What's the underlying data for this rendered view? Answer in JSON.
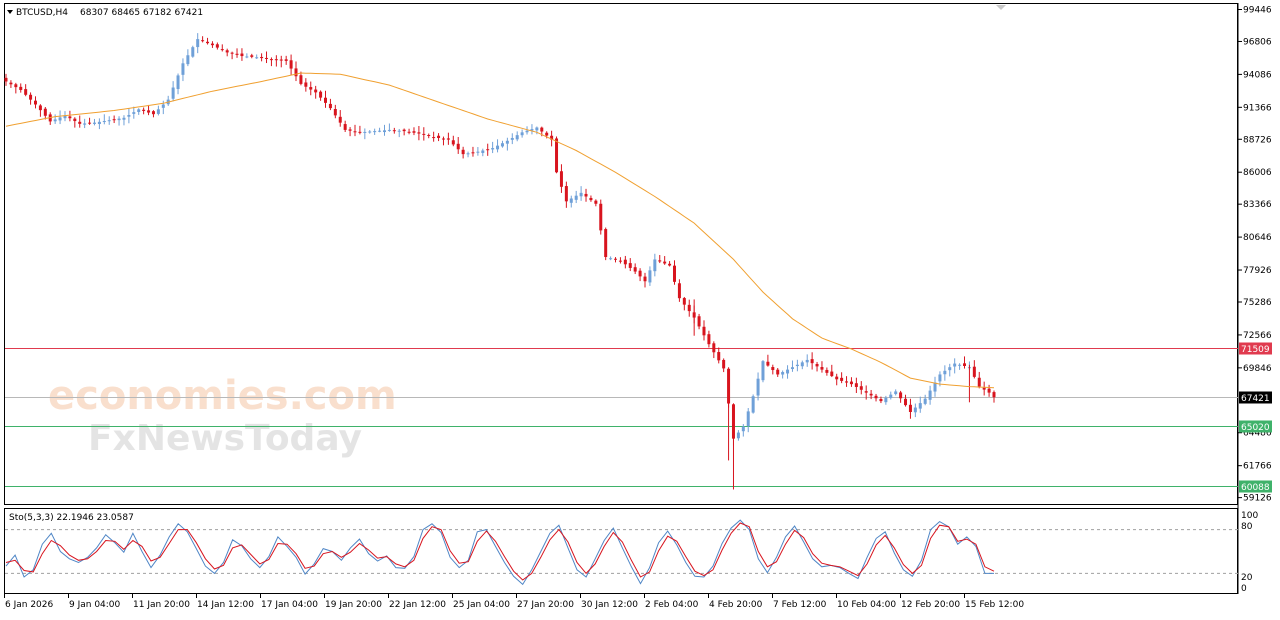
{
  "header": {
    "symbol_timeframe": "BTCUSD,H4",
    "ohlc_values": "68307 68465 67182 67421"
  },
  "watermark": {
    "line1": "economies.com",
    "line2": "FxNewsToday"
  },
  "indicator": {
    "title": "Sto(5,3,3) 22.1946 23.0587",
    "ticks": [
      "100",
      "80",
      "20",
      "0"
    ]
  },
  "colors": {
    "bull": "#6fa0d8",
    "bear": "#d8141e",
    "ma": "#f0a030",
    "resistance": "#e03a4e",
    "support": "#3fb26a",
    "current": "#000000",
    "stoch_main": "#4f86c6",
    "stoch_signal": "#d8141e"
  },
  "chart_data": [
    {
      "type": "candlestick",
      "title": "BTCUSD,H4",
      "ylim": [
        58600,
        99900
      ],
      "y_ticks": [
        "99446",
        "96806",
        "94086",
        "91366",
        "88726",
        "86006",
        "83366",
        "80646",
        "77926",
        "75286",
        "72566",
        "69846",
        "64486",
        "61766",
        "59126"
      ],
      "x_ticks": [
        "6 Jan 2026",
        "9 Jan 04:00",
        "11 Jan 20:00",
        "14 Jan 12:00",
        "17 Jan 04:00",
        "19 Jan 20:00",
        "22 Jan 12:00",
        "25 Jan 04:00",
        "27 Jan 20:00",
        "30 Jan 12:00",
        "2 Feb 04:00",
        "4 Feb 20:00",
        "7 Feb 12:00",
        "10 Feb 04:00",
        "12 Feb 20:00",
        "15 Feb 12:00"
      ],
      "close_path": [
        [
          0,
          93500
        ],
        [
          3,
          92800
        ],
        [
          6,
          91600
        ],
        [
          9,
          90200
        ],
        [
          12,
          90700
        ],
        [
          15,
          90000
        ],
        [
          18,
          90100
        ],
        [
          21,
          90300
        ],
        [
          24,
          90500
        ],
        [
          27,
          91200
        ],
        [
          30,
          90800
        ],
        [
          33,
          92000
        ],
        [
          36,
          95000
        ],
        [
          39,
          97000
        ],
        [
          42,
          96500
        ],
        [
          45,
          95900
        ],
        [
          48,
          95600
        ],
        [
          51,
          95500
        ],
        [
          54,
          95300
        ],
        [
          57,
          95200
        ],
        [
          60,
          93300
        ],
        [
          63,
          92600
        ],
        [
          66,
          91300
        ],
        [
          69,
          89500
        ],
        [
          72,
          89300
        ],
        [
          75,
          89400
        ],
        [
          78,
          89500
        ],
        [
          81,
          89400
        ],
        [
          84,
          89200
        ],
        [
          87,
          88900
        ],
        [
          90,
          88700
        ],
        [
          93,
          87500
        ],
        [
          96,
          87700
        ],
        [
          99,
          88000
        ],
        [
          102,
          88600
        ],
        [
          105,
          89300
        ],
        [
          108,
          89700
        ],
        [
          111,
          88700
        ],
        [
          112,
          86000
        ],
        [
          114,
          83600
        ],
        [
          117,
          84300
        ],
        [
          120,
          83400
        ],
        [
          122,
          79000
        ],
        [
          125,
          78700
        ],
        [
          128,
          77800
        ],
        [
          130,
          77000
        ],
        [
          132,
          78800
        ],
        [
          135,
          78300
        ],
        [
          137,
          75600
        ],
        [
          140,
          74000
        ],
        [
          143,
          71800
        ],
        [
          146,
          69800
        ],
        [
          148,
          64000
        ],
        [
          150,
          65000
        ],
        [
          152,
          67500
        ],
        [
          154,
          70400
        ],
        [
          157,
          69300
        ],
        [
          160,
          69900
        ],
        [
          163,
          70500
        ],
        [
          166,
          69700
        ],
        [
          169,
          68900
        ],
        [
          172,
          68500
        ],
        [
          175,
          67800
        ],
        [
          178,
          67100
        ],
        [
          181,
          67900
        ],
        [
          184,
          66200
        ],
        [
          187,
          67300
        ],
        [
          190,
          69300
        ],
        [
          193,
          70200
        ],
        [
          196,
          69900
        ],
        [
          198,
          68300
        ],
        [
          200,
          67800
        ],
        [
          201,
          67421
        ]
      ],
      "ma_path": [
        [
          0,
          89800
        ],
        [
          10,
          90600
        ],
        [
          22,
          91100
        ],
        [
          32,
          91700
        ],
        [
          42,
          92700
        ],
        [
          52,
          93500
        ],
        [
          60,
          94200
        ],
        [
          68,
          94100
        ],
        [
          78,
          93200
        ],
        [
          88,
          91800
        ],
        [
          98,
          90400
        ],
        [
          108,
          89300
        ],
        [
          116,
          87800
        ],
        [
          124,
          86000
        ],
        [
          132,
          84000
        ],
        [
          140,
          81800
        ],
        [
          148,
          78800
        ],
        [
          154,
          76100
        ],
        [
          160,
          73900
        ],
        [
          166,
          72300
        ],
        [
          172,
          71400
        ],
        [
          178,
          70300
        ],
        [
          184,
          69000
        ],
        [
          190,
          68500
        ],
        [
          196,
          68300
        ],
        [
          201,
          68200
        ]
      ],
      "levels": [
        {
          "label": "71509",
          "value": 71509,
          "role": "resistance"
        },
        {
          "label": "67421",
          "value": 67421,
          "role": "current"
        },
        {
          "label": "65020",
          "value": 65020,
          "role": "support"
        },
        {
          "label": "60088",
          "value": 60088,
          "role": "support"
        }
      ]
    },
    {
      "type": "line",
      "title": "Sto(5,3,3) 22.1946 23.0587",
      "ylim": [
        0,
        100
      ],
      "guide_levels": [
        80,
        20
      ],
      "series": [
        {
          "name": "main",
          "values": [
            30,
            45,
            15,
            25,
            60,
            75,
            50,
            40,
            35,
            42,
            55,
            73,
            62,
            49,
            75,
            50,
            28,
            45,
            70,
            88,
            77,
            54,
            30,
            20,
            35,
            66,
            58,
            40,
            28,
            43,
            70,
            57,
            42,
            19,
            33,
            54,
            50,
            38,
            55,
            67,
            47,
            37,
            44,
            28,
            27,
            43,
            80,
            88,
            76,
            42,
            28,
            38,
            77,
            80,
            57,
            35,
            16,
            5,
            25,
            50,
            75,
            86,
            55,
            25,
            15,
            40,
            65,
            82,
            55,
            29,
            6,
            28,
            62,
            78,
            59,
            35,
            16,
            15,
            30,
            61,
            82,
            93,
            80,
            40,
            21,
            42,
            70,
            85,
            63,
            40,
            29,
            31,
            28,
            20,
            13,
            42,
            68,
            77,
            48,
            25,
            16,
            38,
            80,
            91,
            84,
            60,
            70,
            57,
            20,
            20
          ]
        },
        {
          "name": "signal",
          "values": [
            35,
            38,
            24,
            22,
            47,
            65,
            58,
            45,
            38,
            40,
            50,
            65,
            64,
            53,
            65,
            57,
            37,
            42,
            61,
            80,
            80,
            62,
            40,
            26,
            31,
            55,
            59,
            46,
            33,
            39,
            61,
            60,
            47,
            27,
            30,
            47,
            50,
            42,
            49,
            61,
            52,
            41,
            43,
            33,
            29,
            38,
            68,
            84,
            80,
            51,
            34,
            36,
            64,
            78,
            64,
            43,
            23,
            11,
            20,
            42,
            66,
            80,
            63,
            35,
            20,
            33,
            57,
            76,
            63,
            38,
            15,
            22,
            51,
            71,
            64,
            43,
            23,
            17,
            25,
            52,
            75,
            89,
            84,
            50,
            29,
            36,
            60,
            79,
            69,
            47,
            34,
            31,
            29,
            23,
            17,
            33,
            59,
            72,
            55,
            32,
            20,
            31,
            68,
            86,
            84,
            64,
            67,
            60,
            29,
            23
          ]
        }
      ]
    }
  ]
}
